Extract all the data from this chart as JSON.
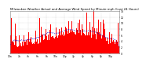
{
  "title": "Milwaukee Weather Actual and Average Wind Speed by Minute mph (Last 24 Hours)",
  "ylim": [
    0,
    14
  ],
  "num_points": 1440,
  "background_color": "#ffffff",
  "bar_color": "#ff0000",
  "line_color": "#0000cc",
  "grid_color": "#bbbbbb",
  "title_fontsize": 2.8,
  "tick_fontsize": 2.2,
  "seed": 42,
  "yticks": [
    0,
    2,
    4,
    6,
    8,
    10,
    12,
    14
  ]
}
